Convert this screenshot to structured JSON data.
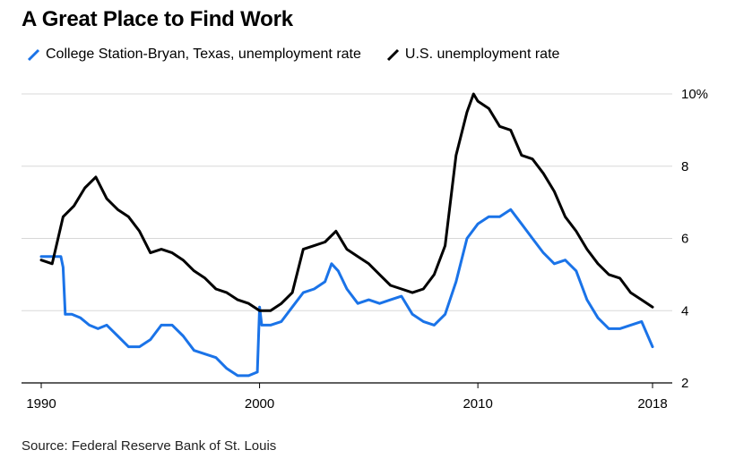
{
  "chart_data": {
    "type": "line",
    "title": "A Great Place to Find Work",
    "xlabel": "",
    "ylabel": "",
    "xlim": [
      1989.5,
      2018.5
    ],
    "ylim": [
      2,
      10.5
    ],
    "x_ticks": [
      1990,
      2000,
      2010,
      2018
    ],
    "x_tick_labels": [
      "1990",
      "2000",
      "2010",
      "2018"
    ],
    "y_ticks": [
      2,
      4,
      6,
      8,
      10
    ],
    "y_tick_labels": [
      "2",
      "4",
      "6",
      "8",
      "10%"
    ],
    "grid": "horizontal",
    "legend_position": "top-left",
    "source": "Source: Federal Reserve Bank of St. Louis",
    "series": [
      {
        "name": "College Station-Bryan, Texas, unemployment rate",
        "color": "#1a73e8",
        "x": [
          1990.0,
          1990.9,
          1991.0,
          1991.1,
          1991.4,
          1991.8,
          1992.2,
          1992.6,
          1993.0,
          1993.5,
          1994.0,
          1994.5,
          1995.0,
          1995.5,
          1996.0,
          1996.5,
          1997.0,
          1997.5,
          1998.0,
          1998.5,
          1999.0,
          1999.5,
          1999.9,
          2000.0,
          2000.1,
          2000.5,
          2001.0,
          2001.5,
          2002.0,
          2002.5,
          2003.0,
          2003.3,
          2003.6,
          2004.0,
          2004.5,
          2005.0,
          2005.5,
          2006.0,
          2006.5,
          2007.0,
          2007.5,
          2008.0,
          2008.5,
          2009.0,
          2009.5,
          2010.0,
          2010.5,
          2010.8,
          2011.0,
          2011.5,
          2012.0,
          2012.5,
          2013.0,
          2013.5,
          2014.0,
          2014.5,
          2015.0,
          2015.5,
          2016.0,
          2016.5,
          2017.0,
          2017.5,
          2018.0
        ],
        "values": [
          5.5,
          5.5,
          5.2,
          3.9,
          3.9,
          3.8,
          3.6,
          3.5,
          3.6,
          3.3,
          3.0,
          3.0,
          3.2,
          3.6,
          3.6,
          3.3,
          2.9,
          2.8,
          2.7,
          2.4,
          2.2,
          2.2,
          2.3,
          4.1,
          3.6,
          3.6,
          3.7,
          4.1,
          4.5,
          4.6,
          4.8,
          5.3,
          5.1,
          4.6,
          4.2,
          4.3,
          4.2,
          4.3,
          4.4,
          3.9,
          3.7,
          3.6,
          3.9,
          4.8,
          6.0,
          6.4,
          6.6,
          6.6,
          6.6,
          6.8,
          6.4,
          6.0,
          5.6,
          5.3,
          5.4,
          5.1,
          4.3,
          3.8,
          3.5,
          3.5,
          3.6,
          3.7,
          3.0
        ]
      },
      {
        "name": "U.S. unemployment rate",
        "color": "#000000",
        "x": [
          1990.0,
          1990.5,
          1991.0,
          1991.5,
          1992.0,
          1992.5,
          1993.0,
          1993.5,
          1994.0,
          1994.5,
          1995.0,
          1995.5,
          1996.0,
          1996.5,
          1997.0,
          1997.5,
          1998.0,
          1998.5,
          1999.0,
          1999.5,
          2000.0,
          2000.5,
          2001.0,
          2001.5,
          2002.0,
          2002.5,
          2003.0,
          2003.5,
          2004.0,
          2004.5,
          2005.0,
          2005.5,
          2006.0,
          2006.5,
          2007.0,
          2007.5,
          2008.0,
          2008.5,
          2009.0,
          2009.5,
          2009.8,
          2010.0,
          2010.5,
          2011.0,
          2011.5,
          2012.0,
          2012.5,
          2013.0,
          2013.5,
          2014.0,
          2014.5,
          2015.0,
          2015.5,
          2016.0,
          2016.5,
          2017.0,
          2017.5,
          2018.0
        ],
        "values": [
          5.4,
          5.3,
          6.6,
          6.9,
          7.4,
          7.7,
          7.1,
          6.8,
          6.6,
          6.2,
          5.6,
          5.7,
          5.6,
          5.4,
          5.1,
          4.9,
          4.6,
          4.5,
          4.3,
          4.2,
          4.0,
          4.0,
          4.2,
          4.5,
          5.7,
          5.8,
          5.9,
          6.2,
          5.7,
          5.5,
          5.3,
          5.0,
          4.7,
          4.6,
          4.5,
          4.6,
          5.0,
          5.8,
          8.3,
          9.5,
          10.0,
          9.8,
          9.6,
          9.1,
          9.0,
          8.3,
          8.2,
          7.8,
          7.3,
          6.6,
          6.2,
          5.7,
          5.3,
          5.0,
          4.9,
          4.5,
          4.3,
          4.1
        ]
      }
    ]
  }
}
